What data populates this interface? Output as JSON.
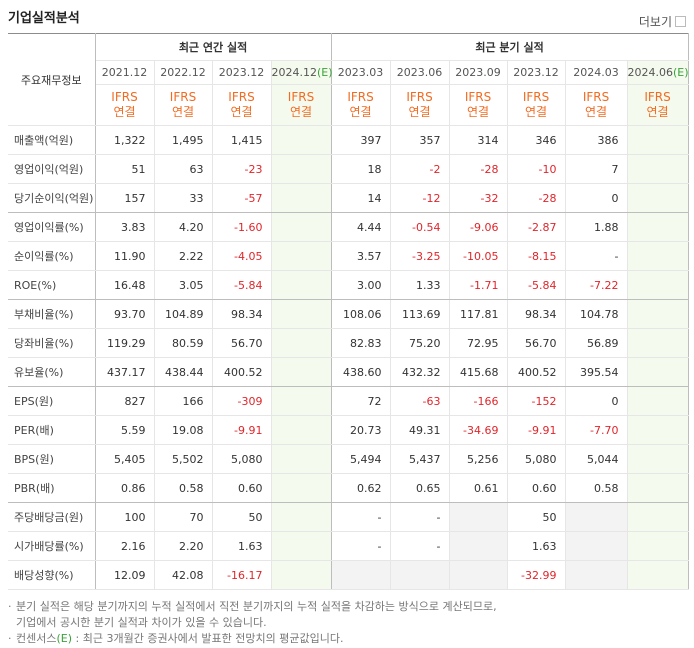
{
  "header": {
    "title": "기업실적분석",
    "more": "더보기"
  },
  "table": {
    "corner": "주요재무정보",
    "basis": [
      "IFRS",
      "연결"
    ],
    "groups": [
      {
        "title": "최근 연간 실적",
        "periods": [
          {
            "label": "2021.12"
          },
          {
            "label": "2022.12"
          },
          {
            "label": "2023.12"
          },
          {
            "label": "2024.12",
            "estimate": "(E)"
          }
        ]
      },
      {
        "title": "최근 분기 실적",
        "periods": [
          {
            "label": "2023.03"
          },
          {
            "label": "2023.06"
          },
          {
            "label": "2023.09"
          },
          {
            "label": "2023.12"
          },
          {
            "label": "2024.03"
          },
          {
            "label": "2024.06",
            "estimate": "(E)"
          }
        ]
      }
    ],
    "rows": [
      {
        "label": "매출액(억원)",
        "values": [
          "1,322",
          "1,495",
          "1,415",
          null,
          "397",
          "357",
          "314",
          "346",
          "386",
          null
        ]
      },
      {
        "label": "영업이익(억원)",
        "values": [
          "51",
          "63",
          "-23",
          null,
          "18",
          "-2",
          "-28",
          "-10",
          "7",
          null
        ]
      },
      {
        "label": "당기순이익(억원)",
        "values": [
          "157",
          "33",
          "-57",
          null,
          "14",
          "-12",
          "-32",
          "-28",
          "0",
          null
        ]
      },
      {
        "label": "영업이익률(%)",
        "values": [
          "3.83",
          "4.20",
          "-1.60",
          null,
          "4.44",
          "-0.54",
          "-9.06",
          "-2.87",
          "1.88",
          null
        ]
      },
      {
        "label": "순이익률(%)",
        "values": [
          "11.90",
          "2.22",
          "-4.05",
          null,
          "3.57",
          "-3.25",
          "-10.05",
          "-8.15",
          "-",
          null
        ]
      },
      {
        "label": "ROE(%)",
        "values": [
          "16.48",
          "3.05",
          "-5.84",
          null,
          "3.00",
          "1.33",
          "-1.71",
          "-5.84",
          "-7.22",
          null
        ]
      },
      {
        "label": "부채비율(%)",
        "values": [
          "93.70",
          "104.89",
          "98.34",
          null,
          "108.06",
          "113.69",
          "117.81",
          "98.34",
          "104.78",
          null
        ]
      },
      {
        "label": "당좌비율(%)",
        "values": [
          "119.29",
          "80.59",
          "56.70",
          null,
          "82.83",
          "75.20",
          "72.95",
          "56.70",
          "56.89",
          null
        ]
      },
      {
        "label": "유보율(%)",
        "values": [
          "437.17",
          "438.44",
          "400.52",
          null,
          "438.60",
          "432.32",
          "415.68",
          "400.52",
          "395.54",
          null
        ]
      },
      {
        "label": "EPS(원)",
        "values": [
          "827",
          "166",
          "-309",
          null,
          "72",
          "-63",
          "-166",
          "-152",
          "0",
          null
        ]
      },
      {
        "label": "PER(배)",
        "values": [
          "5.59",
          "19.08",
          "-9.91",
          null,
          "20.73",
          "49.31",
          "-34.69",
          "-9.91",
          "-7.70",
          null
        ]
      },
      {
        "label": "BPS(원)",
        "values": [
          "5,405",
          "5,502",
          "5,080",
          null,
          "5,494",
          "5,437",
          "5,256",
          "5,080",
          "5,044",
          null
        ]
      },
      {
        "label": "PBR(배)",
        "values": [
          "0.86",
          "0.58",
          "0.60",
          null,
          "0.62",
          "0.65",
          "0.61",
          "0.60",
          "0.58",
          null
        ]
      },
      {
        "label": "주당배당금(원)",
        "values": [
          "100",
          "70",
          "50",
          null,
          "-",
          "-",
          null,
          "50",
          null,
          null
        ]
      },
      {
        "label": "시가배당률(%)",
        "values": [
          "2.16",
          "2.20",
          "1.63",
          null,
          "-",
          "-",
          null,
          "1.63",
          null,
          null
        ]
      },
      {
        "label": "배당성향(%)",
        "values": [
          "12.09",
          "42.08",
          "-16.17",
          null,
          null,
          null,
          null,
          "-32.99",
          null,
          null
        ]
      }
    ]
  },
  "notes": [
    {
      "lines": [
        "분기 실적은 해당 분기까지의 누적 실적에서 직전 분기까지의 누적 실적을 차감하는 방식으로 계산되므로,",
        "기업에서 공시한 분기 실적과 차이가 있을 수 있습니다."
      ]
    },
    {
      "parts": [
        "컨센서스",
        "(E)",
        " : 최근 3개월간 증권사에서 발표한 전망치의 평균값입니다."
      ]
    }
  ]
}
